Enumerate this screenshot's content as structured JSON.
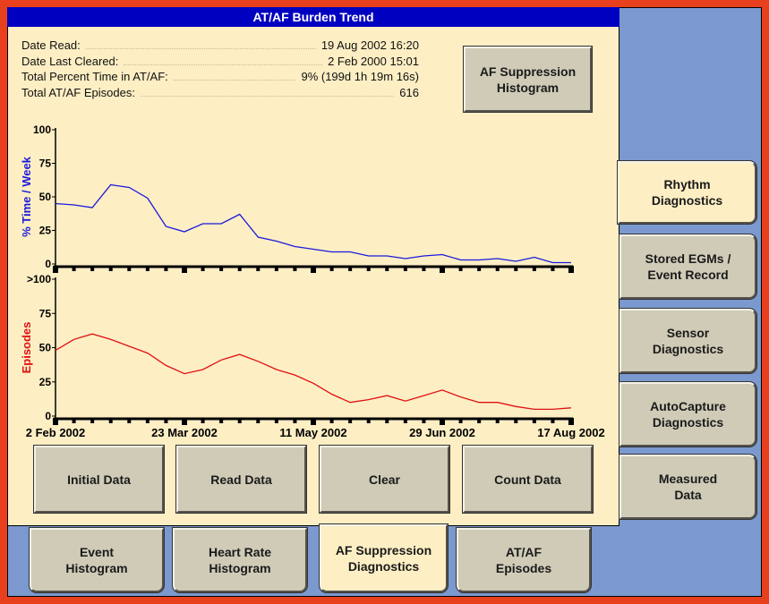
{
  "window": {
    "title": "AT/AF Burden Trend"
  },
  "info": [
    {
      "label": "Date Read:",
      "value": "19 Aug 2002 16:20"
    },
    {
      "label": "Date Last Cleared:",
      "value": "2 Feb 2000 15:01"
    },
    {
      "label": "Total Percent Time in AT/AF:",
      "value": "9% (199d 1h 19m 16s)"
    },
    {
      "label": "Total AT/AF Episodes:",
      "value": "616"
    }
  ],
  "histogram_button": [
    "AF Suppression",
    "Histogram"
  ],
  "action_buttons": [
    "Initial Data",
    "Read Data",
    "Clear",
    "Count Data"
  ],
  "side_tabs": {
    "selected": 0,
    "items": [
      [
        "Rhythm",
        "Diagnostics"
      ],
      [
        "Stored EGMs /",
        "Event Record"
      ],
      [
        "Sensor",
        "Diagnostics"
      ],
      [
        "AutoCapture",
        "Diagnostics"
      ],
      [
        "Measured",
        "Data"
      ]
    ]
  },
  "bottom_tabs": {
    "selected": 2,
    "items": [
      [
        "Event",
        "Histogram"
      ],
      [
        "Heart Rate",
        "Histogram"
      ],
      [
        "AF Suppression",
        "Diagnostics"
      ],
      [
        "AT/AF",
        "Episodes"
      ]
    ]
  },
  "chart_data": [
    {
      "type": "line",
      "y_label": "% Time / Week",
      "color": "#1a1adc",
      "values": [
        45,
        44,
        42,
        59,
        57,
        49,
        28,
        24,
        30,
        30,
        37,
        20,
        17,
        13,
        11,
        9,
        9,
        6,
        6,
        4,
        6,
        7,
        3,
        3,
        4,
        2,
        5,
        1,
        1
      ],
      "ylim": [
        0,
        100
      ],
      "yticks": [
        0,
        25,
        50,
        75,
        100
      ]
    },
    {
      "type": "line",
      "y_label": "Episodes",
      "color": "#e01010",
      "categories": [
        "2 Feb 2002",
        null,
        null,
        null,
        null,
        null,
        null,
        "23 Mar 2002",
        null,
        null,
        null,
        null,
        null,
        null,
        "11 May 2002",
        null,
        null,
        null,
        null,
        null,
        null,
        "29 Jun 2002",
        null,
        null,
        null,
        null,
        null,
        null,
        "17 Aug 2002"
      ],
      "values": [
        48,
        56,
        60,
        56,
        51,
        46,
        37,
        31,
        34,
        41,
        45,
        40,
        34,
        30,
        24,
        16,
        10,
        12,
        15,
        11,
        15,
        19,
        14,
        10,
        10,
        7,
        5,
        5,
        6
      ],
      "ylim": [
        0,
        100
      ],
      "yticks": [
        0,
        25,
        50,
        75,
        {
          "value": 100,
          "label": ">100"
        }
      ]
    }
  ]
}
